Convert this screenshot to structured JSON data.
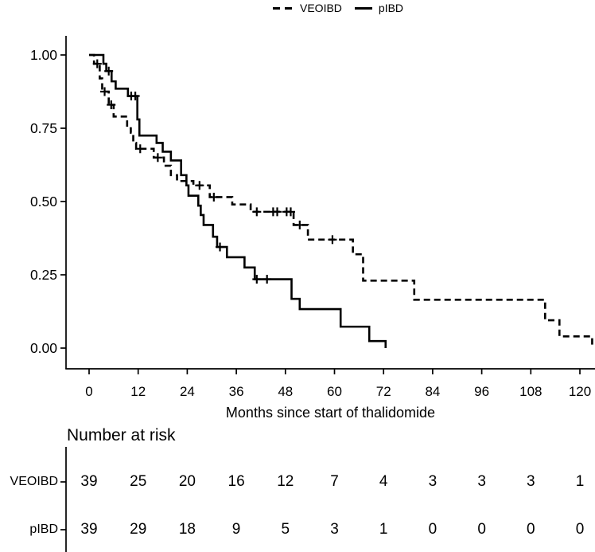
{
  "legend": {
    "items": [
      {
        "label": "VEOIBD",
        "line_style": "dashed"
      },
      {
        "label": "pIBD",
        "line_style": "solid"
      }
    ]
  },
  "chart_data": {
    "type": "line",
    "subtype": "kaplan_meier_step",
    "title": "",
    "xlabel": "Months since start of thalidomide",
    "ylabel": "",
    "xlim": [
      0,
      126
    ],
    "ylim": [
      0,
      1
    ],
    "x_ticks": [
      0,
      12,
      24,
      36,
      48,
      60,
      72,
      84,
      96,
      108,
      120
    ],
    "y_ticks": {
      "values": [
        0,
        0.25,
        0.5,
        0.75,
        1
      ],
      "labels": [
        "0.00",
        "0.25",
        "0.50",
        "0.75",
        "1.00"
      ]
    },
    "grid": false,
    "legend_position": "top-center",
    "line_color": "#000000",
    "background_color": "#ffffff",
    "series": [
      {
        "name": "VEOIBD",
        "line_style": "dashed",
        "steps": [
          [
            0,
            1.0
          ],
          [
            1.2,
            0.97
          ],
          [
            2.6,
            0.92
          ],
          [
            3.2,
            0.875
          ],
          [
            4.8,
            0.83
          ],
          [
            6,
            0.79
          ],
          [
            9.3,
            0.75
          ],
          [
            10.2,
            0.735
          ],
          [
            10.8,
            0.7
          ],
          [
            11.5,
            0.68
          ],
          [
            15.8,
            0.65
          ],
          [
            18.3,
            0.622
          ],
          [
            20,
            0.59
          ],
          [
            21.5,
            0.57
          ],
          [
            25.5,
            0.555
          ],
          [
            29.5,
            0.515
          ],
          [
            35,
            0.49
          ],
          [
            39.5,
            0.465
          ],
          [
            50,
            0.42
          ],
          [
            53.5,
            0.37
          ],
          [
            64.5,
            0.32
          ],
          [
            67,
            0.23
          ],
          [
            79.5,
            0.165
          ],
          [
            111.5,
            0.095
          ],
          [
            115,
            0.04
          ],
          [
            123,
            0.0
          ]
        ],
        "censor_marks": [
          [
            2,
            0.97
          ],
          [
            3.8,
            0.875
          ],
          [
            5.4,
            0.83
          ],
          [
            12.5,
            0.68
          ],
          [
            16.8,
            0.65
          ],
          [
            27,
            0.555
          ],
          [
            30.5,
            0.515
          ],
          [
            41,
            0.465
          ],
          [
            45,
            0.465
          ],
          [
            46,
            0.465
          ],
          [
            48.3,
            0.465
          ],
          [
            49.3,
            0.465
          ],
          [
            51.5,
            0.42
          ],
          [
            59.5,
            0.37
          ]
        ]
      },
      {
        "name": "pIBD",
        "line_style": "solid",
        "steps": [
          [
            0,
            1.0
          ],
          [
            3.5,
            0.97
          ],
          [
            4.2,
            0.945
          ],
          [
            5.5,
            0.91
          ],
          [
            6.5,
            0.885
          ],
          [
            9.5,
            0.86
          ],
          [
            11.8,
            0.78
          ],
          [
            12.3,
            0.725
          ],
          [
            16.5,
            0.7
          ],
          [
            18,
            0.67
          ],
          [
            20,
            0.64
          ],
          [
            22.5,
            0.59
          ],
          [
            23.8,
            0.555
          ],
          [
            24.3,
            0.52
          ],
          [
            26.7,
            0.486
          ],
          [
            27.3,
            0.454
          ],
          [
            28,
            0.42
          ],
          [
            30.3,
            0.38
          ],
          [
            31.3,
            0.345
          ],
          [
            33.7,
            0.31
          ],
          [
            38,
            0.275
          ],
          [
            40.5,
            0.235
          ],
          [
            49.5,
            0.168
          ],
          [
            51.5,
            0.133
          ],
          [
            61.5,
            0.073
          ],
          [
            68.5,
            0.024
          ],
          [
            72.5,
            0.0
          ]
        ],
        "censor_marks": [
          [
            4.8,
            0.945
          ],
          [
            10.3,
            0.86
          ],
          [
            11.3,
            0.86
          ],
          [
            32,
            0.345
          ],
          [
            41,
            0.235
          ],
          [
            43.5,
            0.235
          ]
        ]
      }
    ]
  },
  "risk_table": {
    "title": "Number at risk",
    "months": [
      0,
      12,
      24,
      36,
      48,
      60,
      72,
      84,
      96,
      108,
      120
    ],
    "rows": [
      {
        "label": "VEOIBD",
        "counts": [
          39,
          25,
          20,
          16,
          12,
          7,
          4,
          3,
          3,
          3,
          1
        ]
      },
      {
        "label": "pIBD",
        "counts": [
          39,
          29,
          18,
          9,
          5,
          3,
          1,
          0,
          0,
          0,
          0
        ]
      }
    ]
  }
}
